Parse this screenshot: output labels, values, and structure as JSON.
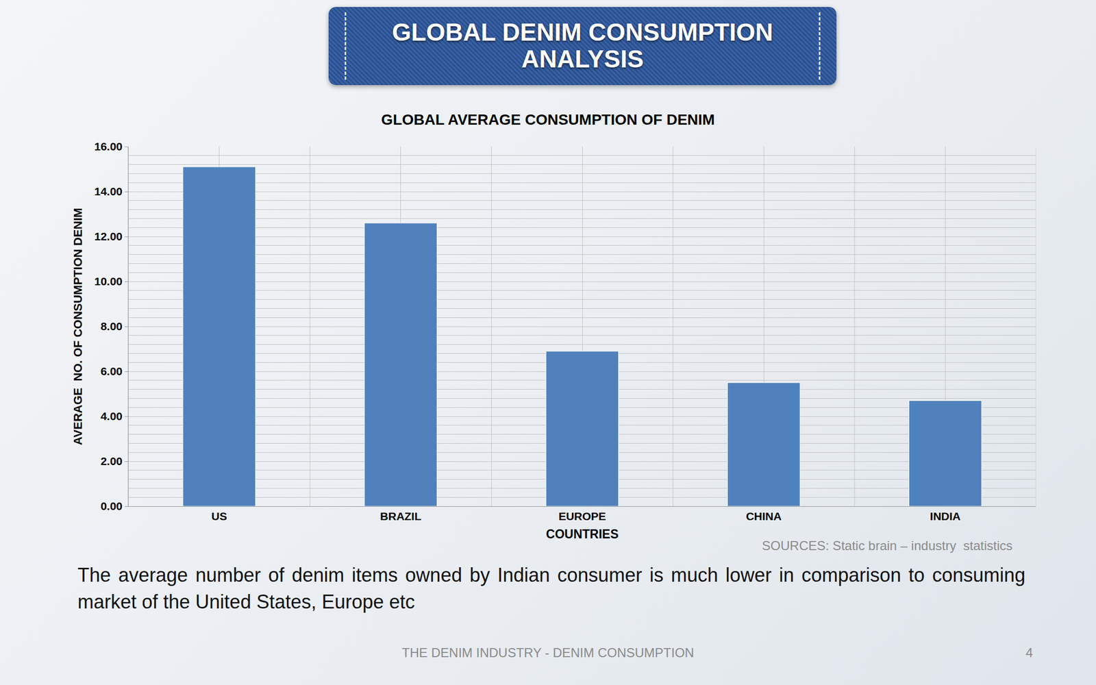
{
  "header": {
    "title": "GLOBAL DENIM CONSUMPTION ANALYSIS"
  },
  "chart_data": {
    "type": "bar",
    "title": "GLOBAL AVERAGE CONSUMPTION OF DENIM",
    "x_label": "COUNTRIES",
    "y_label": "AVERAGE  NO. OF CONSUMPTION DENIM",
    "categories": [
      "US",
      "BRAZIL",
      "EUROPE",
      "CHINA",
      "INDIA"
    ],
    "values": [
      15.1,
      12.6,
      6.9,
      5.5,
      4.7
    ],
    "color": "#4f81bd",
    "ylim": [
      0,
      16
    ],
    "yticks": [
      {
        "value": 0,
        "label": "0.00"
      },
      {
        "value": 2,
        "label": "2.00"
      },
      {
        "value": 4,
        "label": "4.00"
      },
      {
        "value": 6,
        "label": "6.00"
      },
      {
        "value": 8,
        "label": "8.00"
      },
      {
        "value": 10,
        "label": "10.00"
      },
      {
        "value": 12,
        "label": "12.00"
      },
      {
        "value": 14,
        "label": "14.00"
      },
      {
        "value": 16,
        "label": "16.00"
      }
    ],
    "grid": true
  },
  "source": "SOURCES: Static brain – industry  statistics",
  "caption": "The average number of denim items owned by Indian consumer is much lower in comparison to consuming market of the United States, Europe etc",
  "footer": "THE DENIM INDUSTRY - DENIM CONSUMPTION",
  "page_number": "4"
}
